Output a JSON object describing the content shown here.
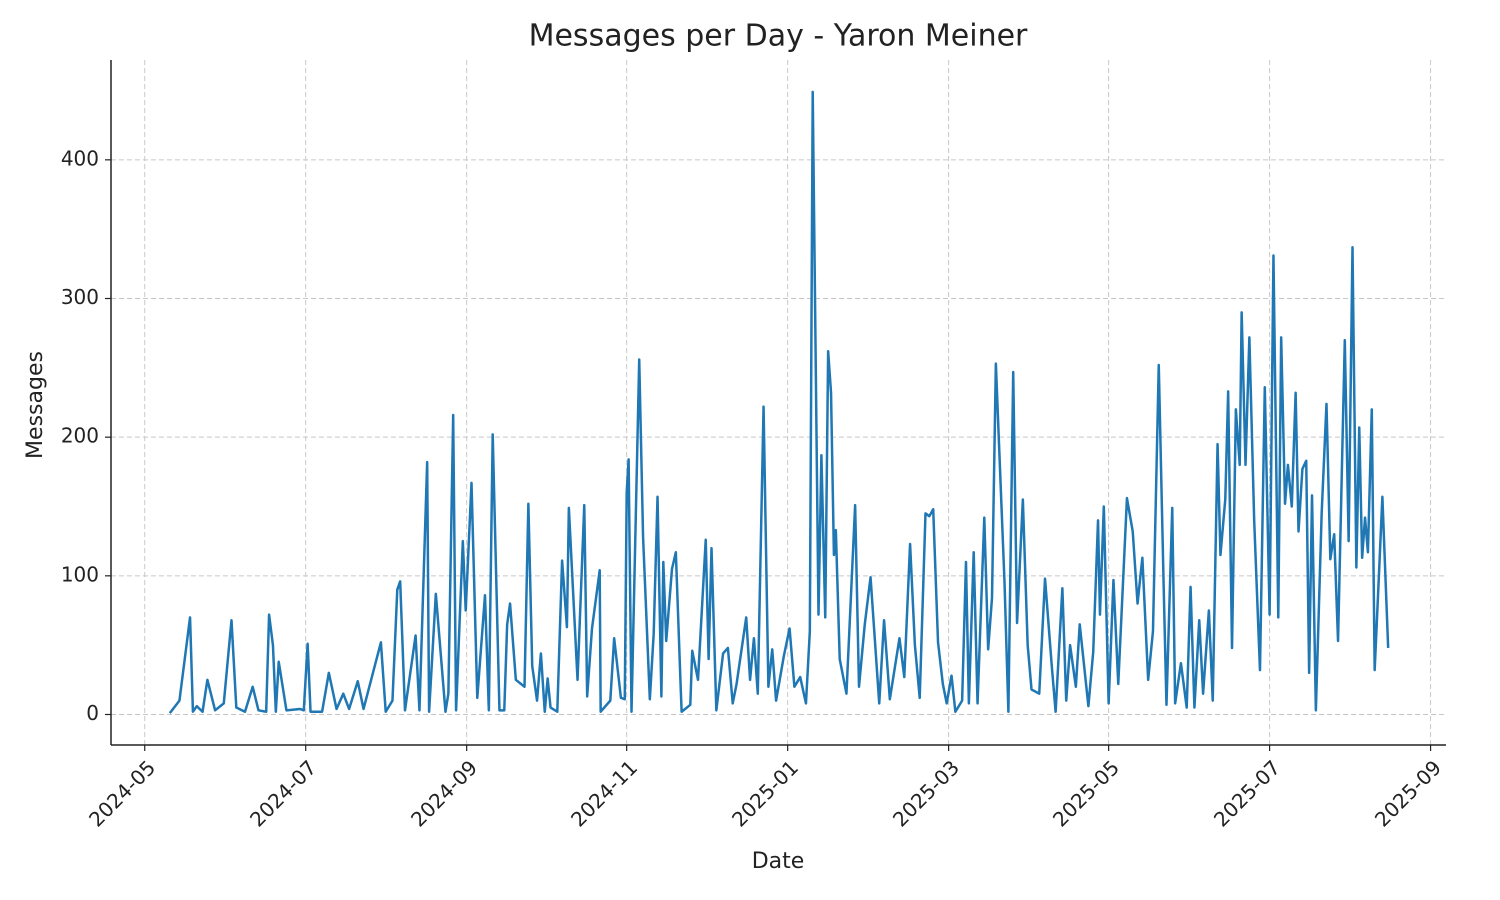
{
  "chart_data": {
    "type": "line",
    "title": "Messages per Day - Yaron Meiner",
    "x_label": "Date",
    "y_label": "Messages",
    "grid": true,
    "xlim": [
      2024.298,
      2025.683
    ],
    "ylim": [
      -22,
      472
    ],
    "xticks": [
      {
        "value": 2024.333,
        "label": "2024-05"
      },
      {
        "value": 2024.5,
        "label": "2024-07"
      },
      {
        "value": 2024.667,
        "label": "2024-09"
      },
      {
        "value": 2024.833,
        "label": "2024-11"
      },
      {
        "value": 2025.0,
        "label": "2025-01"
      },
      {
        "value": 2025.167,
        "label": "2025-03"
      },
      {
        "value": 2025.333,
        "label": "2025-05"
      },
      {
        "value": 2025.5,
        "label": "2025-07"
      },
      {
        "value": 2025.667,
        "label": "2025-09"
      }
    ],
    "yticks": [
      0,
      100,
      200,
      300,
      400
    ],
    "series": [
      {
        "name": "Messages",
        "color": "#1f77b4",
        "x": [
          2024.359,
          2024.369,
          2024.38,
          2024.383,
          2024.387,
          2024.393,
          2024.398,
          2024.406,
          2024.415,
          2024.423,
          2024.428,
          2024.437,
          2024.445,
          2024.451,
          2024.459,
          2024.462,
          2024.466,
          2024.469,
          2024.472,
          2024.48,
          2024.494,
          2024.498,
          2024.502,
          2024.505,
          2024.517,
          2024.524,
          2024.532,
          2024.539,
          2024.545,
          2024.554,
          2024.56,
          2024.578,
          2024.583,
          2024.59,
          2024.595,
          2024.598,
          2024.603,
          2024.614,
          2024.618,
          2024.626,
          2024.628,
          2024.635,
          2024.645,
          2024.648,
          2024.653,
          2024.656,
          2024.663,
          2024.666,
          2024.672,
          2024.678,
          2024.686,
          2024.69,
          2024.694,
          2024.701,
          2024.706,
          2024.709,
          2024.712,
          2024.718,
          2024.727,
          2024.731,
          2024.735,
          2024.74,
          2024.744,
          2024.748,
          2024.751,
          2024.754,
          2024.761,
          2024.766,
          2024.771,
          2024.773,
          2024.782,
          2024.789,
          2024.792,
          2024.797,
          2024.805,
          2024.806,
          2024.816,
          2024.82,
          2024.827,
          2024.831,
          2024.833,
          2024.835,
          2024.838,
          2024.846,
          2024.85,
          2024.857,
          2024.861,
          2024.865,
          2024.869,
          2024.871,
          2024.874,
          2024.88,
          2024.884,
          2024.889,
          2024.89,
          2024.899,
          2024.901,
          2024.907,
          2024.915,
          2024.918,
          2024.921,
          2024.926,
          2024.933,
          2024.938,
          2024.943,
          2024.947,
          2024.957,
          2024.961,
          2024.965,
          2024.969,
          2024.975,
          2024.98,
          2024.984,
          2024.988,
          2024.996,
          2025.002,
          2025.007,
          2025.013,
          2025.019,
          2025.023,
          2025.026,
          2025.032,
          2025.035,
          2025.039,
          2025.042,
          2025.045,
          2025.048,
          2025.05,
          2025.054,
          2025.061,
          2025.07,
          2025.074,
          2025.08,
          2025.086,
          2025.095,
          2025.1,
          2025.106,
          2025.116,
          2025.121,
          2025.127,
          2025.132,
          2025.137,
          2025.143,
          2025.147,
          2025.151,
          2025.156,
          2025.161,
          2025.165,
          2025.17,
          2025.174,
          2025.181,
          2025.185,
          2025.188,
          2025.193,
          2025.197,
          2025.204,
          2025.208,
          2025.212,
          2025.216,
          2025.219,
          2025.225,
          2025.229,
          2025.234,
          2025.238,
          2025.244,
          2025.249,
          2025.253,
          2025.261,
          2025.267,
          2025.274,
          2025.278,
          2025.285,
          2025.289,
          2025.293,
          2025.299,
          2025.303,
          2025.312,
          2025.317,
          2025.322,
          2025.324,
          2025.328,
          2025.333,
          2025.338,
          2025.343,
          2025.352,
          2025.358,
          2025.363,
          2025.368,
          2025.374,
          2025.379,
          2025.385,
          2025.39,
          2025.393,
          2025.399,
          2025.402,
          2025.408,
          2025.414,
          2025.418,
          2025.422,
          2025.427,
          2025.431,
          2025.437,
          2025.441,
          2025.446,
          2025.449,
          2025.454,
          2025.457,
          2025.461,
          2025.465,
          2025.469,
          2025.471,
          2025.475,
          2025.479,
          2025.484,
          2025.49,
          2025.495,
          2025.5,
          2025.504,
          2025.509,
          2025.512,
          2025.516,
          2025.519,
          2025.523,
          2025.527,
          2025.53,
          2025.534,
          2025.538,
          2025.541,
          2025.544,
          2025.548,
          2025.554,
          2025.559,
          2025.563,
          2025.567,
          2025.571,
          2025.578,
          2025.582,
          2025.586,
          2025.59,
          2025.593,
          2025.596,
          2025.599,
          2025.602,
          2025.606,
          2025.609,
          2025.613,
          2025.617,
          2025.623
        ],
        "values": [
          1,
          10,
          70,
          2,
          6,
          2,
          25,
          3,
          8,
          68,
          5,
          2,
          20,
          3,
          2,
          72,
          50,
          2,
          38,
          3,
          4,
          3,
          51,
          2,
          2,
          30,
          4,
          15,
          4,
          24,
          4,
          52,
          2,
          10,
          90,
          96,
          3,
          57,
          3,
          182,
          2,
          87,
          2,
          15,
          216,
          3,
          125,
          75,
          167,
          12,
          86,
          3,
          202,
          3,
          3,
          65,
          80,
          25,
          20,
          152,
          35,
          10,
          44,
          2,
          26,
          5,
          2,
          111,
          63,
          149,
          25,
          151,
          13,
          62,
          104,
          2,
          10,
          55,
          12,
          11,
          160,
          184,
          2,
          256,
          128,
          11,
          58,
          157,
          13,
          110,
          53,
          105,
          117,
          20,
          2,
          7,
          46,
          25,
          126,
          40,
          120,
          3,
          44,
          48,
          8,
          22,
          70,
          25,
          55,
          15,
          222,
          20,
          47,
          10,
          42,
          62,
          20,
          27,
          8,
          60,
          449,
          72,
          187,
          70,
          262,
          232,
          115,
          133,
          40,
          15,
          151,
          20,
          65,
          99,
          8,
          68,
          11,
          55,
          27,
          123,
          50,
          12,
          145,
          143,
          148,
          52,
          22,
          8,
          28,
          2,
          10,
          110,
          8,
          117,
          8,
          142,
          47,
          84,
          253,
          200,
          95,
          2,
          247,
          66,
          155,
          50,
          18,
          15,
          98,
          35,
          2,
          91,
          10,
          50,
          20,
          65,
          6,
          45,
          140,
          72,
          150,
          8,
          97,
          22,
          156,
          132,
          80,
          113,
          25,
          60,
          252,
          95,
          7,
          149,
          8,
          37,
          5,
          92,
          5,
          68,
          15,
          75,
          10,
          195,
          115,
          155,
          233,
          48,
          220,
          180,
          290,
          180,
          272,
          140,
          32,
          236,
          72,
          331,
          70,
          272,
          152,
          180,
          150,
          232,
          132,
          177,
          183,
          30,
          158,
          3,
          145,
          224,
          112,
          130,
          53,
          270,
          125,
          337,
          106,
          207,
          113,
          142,
          117,
          220,
          32,
          94,
          157,
          48
        ]
      }
    ]
  }
}
